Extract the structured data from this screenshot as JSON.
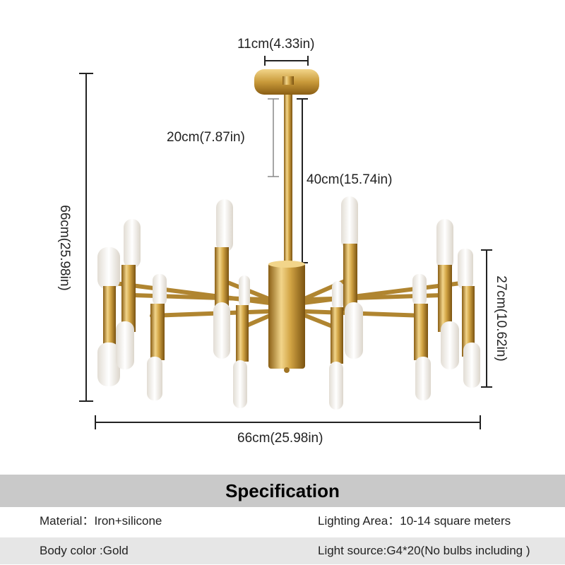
{
  "dimensions": {
    "canopy_width": "11cm(4.33in)",
    "rod_short": "20cm(7.87in)",
    "rod_long": "40cm(15.74in)",
    "total_height": "66cm(25.98in)",
    "body_height": "27cm(10.62in)",
    "total_width": "66cm(25.98in)"
  },
  "specification": {
    "title": "Specification",
    "material": "Material：Iron+silicone",
    "lighting_area": "Lighting Area：10-14 square meters",
    "body_color": "Body color :Gold",
    "light_source": "Light source:G4*20(No bulbs including )"
  },
  "colors": {
    "gold": "#c99a3a",
    "gold_light": "#f2d58a",
    "bulb": "#f4f1ec",
    "spec_header_bg": "#c9c9c9",
    "spec_row_alt_bg": "#e6e6e6"
  }
}
